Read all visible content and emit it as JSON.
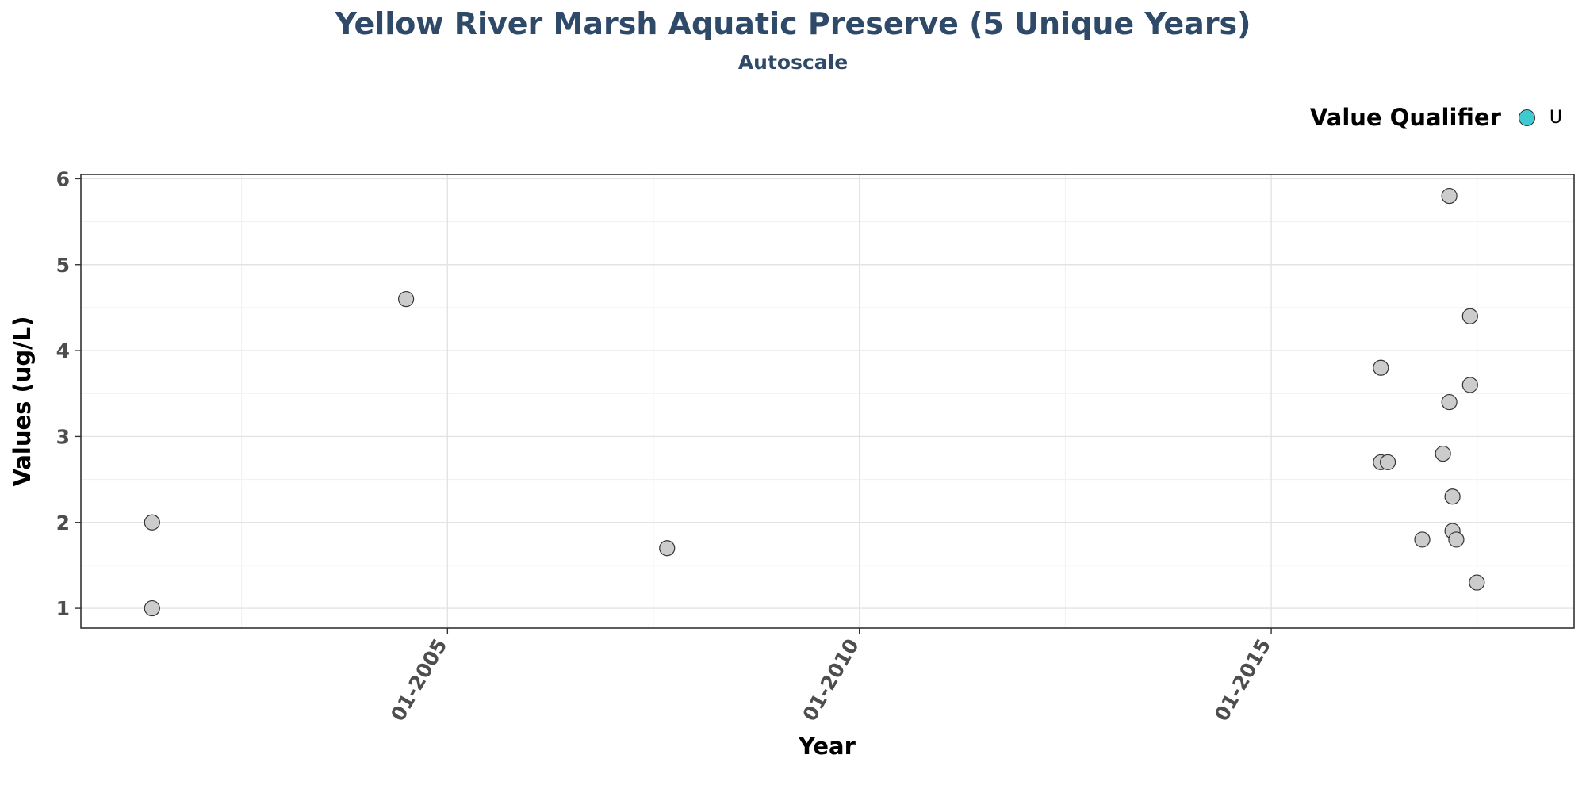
{
  "chart_data": {
    "type": "scatter",
    "title": "Yellow River Marsh Aquatic Preserve (5 Unique Years)",
    "subtitle": "Autoscale",
    "xlabel": "Year",
    "ylabel": "Values (ug/L)",
    "x_tick_labels": [
      "01-2005",
      "01-2010",
      "01-2015"
    ],
    "x_ticks": [
      "2005-01-01",
      "2010-01-01",
      "2015-01-01"
    ],
    "x_range": [
      "2000-07-20",
      "2018-09-05"
    ],
    "y_ticks": [
      1,
      2,
      3,
      4,
      5,
      6
    ],
    "ylim": [
      0.77,
      6.05
    ],
    "grid": true,
    "legend": {
      "title": "Value Qualifier",
      "placement": "top-right",
      "entries": [
        {
          "label": "U",
          "color": "#3ecad0"
        }
      ]
    },
    "point_color": "#cccccc",
    "point_edge_color": "#333333",
    "series": [
      {
        "points": [
          {
            "x": "2001-06-01",
            "y": 2.0
          },
          {
            "x": "2001-06-01",
            "y": 1.0
          },
          {
            "x": "2004-07-01",
            "y": 4.6
          },
          {
            "x": "2007-09-01",
            "y": 1.7
          },
          {
            "x": "2016-05-01",
            "y": 3.8
          },
          {
            "x": "2016-05-01",
            "y": 2.7
          },
          {
            "x": "2016-06-01",
            "y": 2.7
          },
          {
            "x": "2016-11-01",
            "y": 1.8
          },
          {
            "x": "2017-02-01",
            "y": 2.8
          },
          {
            "x": "2017-03-01",
            "y": 5.8
          },
          {
            "x": "2017-03-01",
            "y": 3.4
          },
          {
            "x": "2017-03-15",
            "y": 2.3
          },
          {
            "x": "2017-03-15",
            "y": 1.9
          },
          {
            "x": "2017-04-01",
            "y": 1.8
          },
          {
            "x": "2017-06-01",
            "y": 4.4
          },
          {
            "x": "2017-06-01",
            "y": 3.6
          },
          {
            "x": "2017-07-01",
            "y": 1.3
          }
        ]
      }
    ]
  }
}
